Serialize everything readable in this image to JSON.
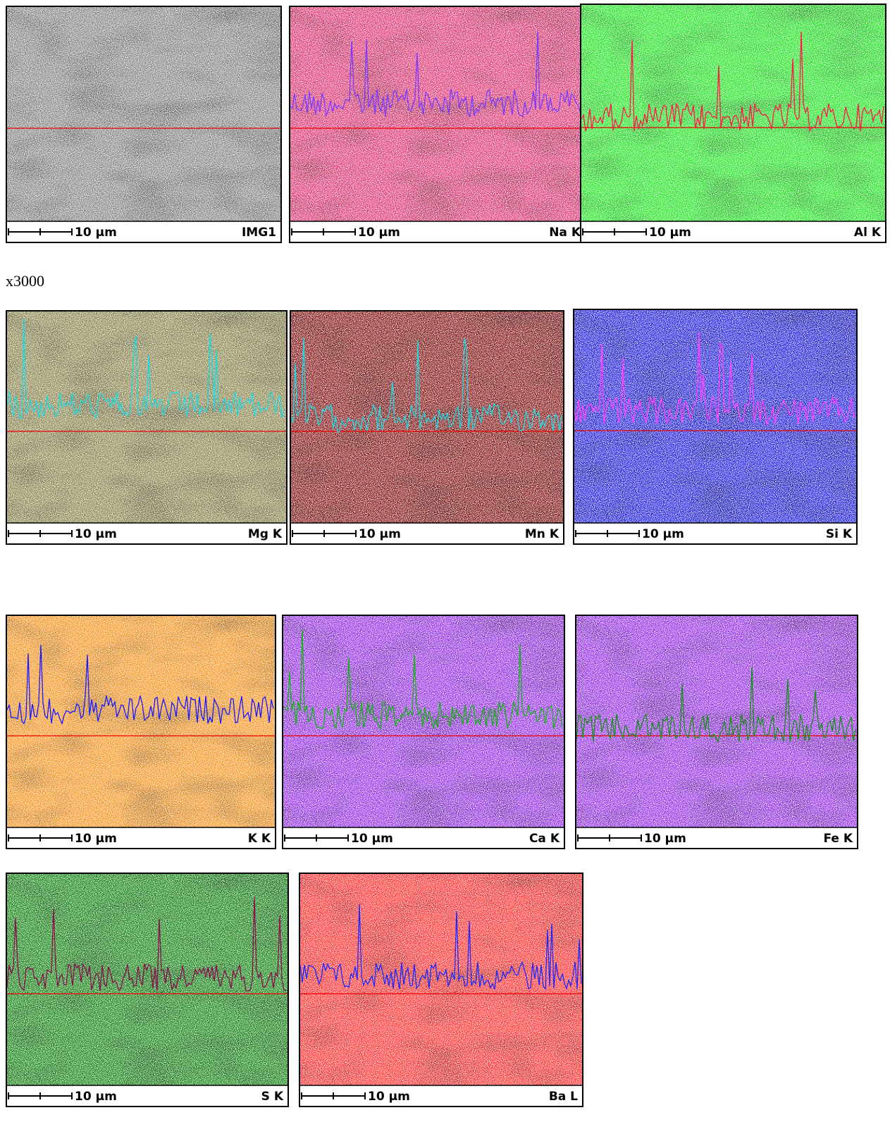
{
  "caption": "x3000",
  "panels": [
    {
      "label": "IMG1",
      "scale": "10 µm",
      "color": "#8a8a8a",
      "trace_color": null
    },
    {
      "label": "Na K",
      "scale": "10 µm",
      "color": "#e0407a",
      "trace_color": "#7a3cff"
    },
    {
      "label": "Al K",
      "scale": "10 µm",
      "color": "#2ee62e",
      "trace_color": "#ff1a4a"
    },
    {
      "label": "Mg K",
      "scale": "10 µm",
      "color": "#8f8a55",
      "trace_color": "#20d8e0"
    },
    {
      "label": "Mn K",
      "scale": "10 µm",
      "color": "#8a1f1f",
      "trace_color": "#20d8e0"
    },
    {
      "label": "Si K",
      "scale": "10 µm",
      "color": "#2a2ae0",
      "trace_color": "#ff40ff"
    },
    {
      "label": "K K",
      "scale": "10 µm",
      "color": "#f59a2a",
      "trace_color": "#1a1aff"
    },
    {
      "label": "Ca K",
      "scale": "10 µm",
      "color": "#9a3ae6",
      "trace_color": "#1ab01a"
    },
    {
      "label": "Fe K",
      "scale": "10 µm",
      "color": "#9a3ae6",
      "trace_color": "#1a901a"
    },
    {
      "label": "S K",
      "scale": "10 µm",
      "color": "#1f8a1f",
      "trace_color": "#8a1050"
    },
    {
      "label": "Ba L",
      "scale": "10 µm",
      "color": "#ff3a3a",
      "trace_color": "#1a2aff"
    }
  ]
}
